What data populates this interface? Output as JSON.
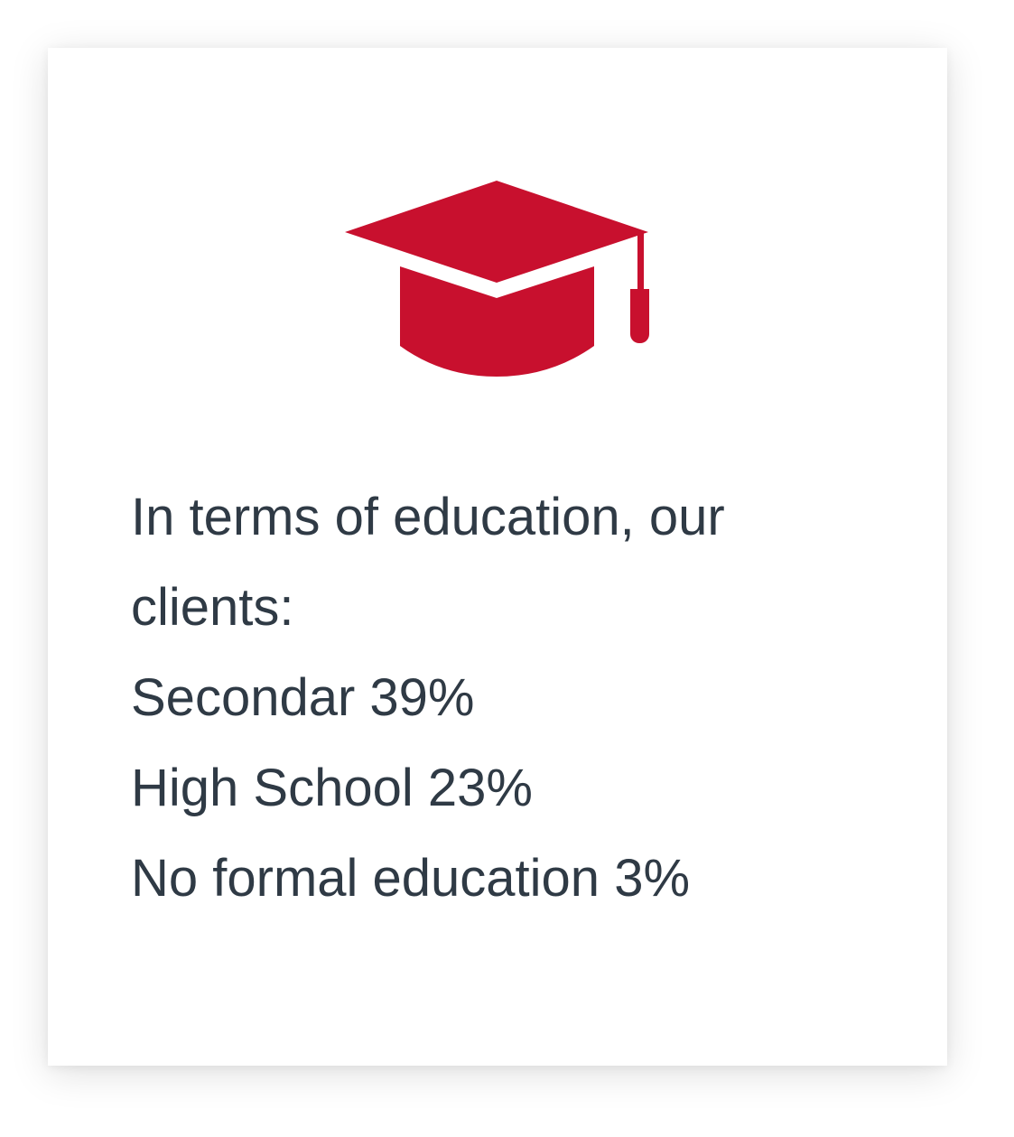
{
  "icon": {
    "name": "graduation-cap-icon",
    "color": "#c8102e"
  },
  "intro": "In terms of education, our clients:",
  "stats": [
    {
      "label": "Secondar",
      "value": "39%"
    },
    {
      "label": "High School",
      "value": "23%"
    },
    {
      "label": "No formal education",
      "value": "3%"
    }
  ],
  "colors": {
    "text": "#2f3a45",
    "accent": "#c8102e"
  }
}
